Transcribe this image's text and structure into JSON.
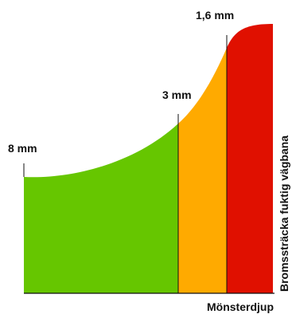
{
  "chart_data": {
    "type": "area",
    "title": "",
    "xlabel": "Mönsterdjup",
    "ylabel": "Bromssträcka fuktig vägbana",
    "markers": [
      {
        "label": "8 mm"
      },
      {
        "label": "3 mm"
      },
      {
        "label": "1,6 mm"
      }
    ],
    "zones": [
      {
        "name": "green",
        "from": "8 mm",
        "to": "3 mm",
        "color": "#66c600"
      },
      {
        "name": "orange",
        "from": "3 mm",
        "to": "1,6 mm",
        "color": "#ffaa00"
      },
      {
        "name": "red",
        "from": "1,6 mm",
        "to": "",
        "color": "#e01000"
      }
    ],
    "grid": false,
    "legend": "none"
  }
}
